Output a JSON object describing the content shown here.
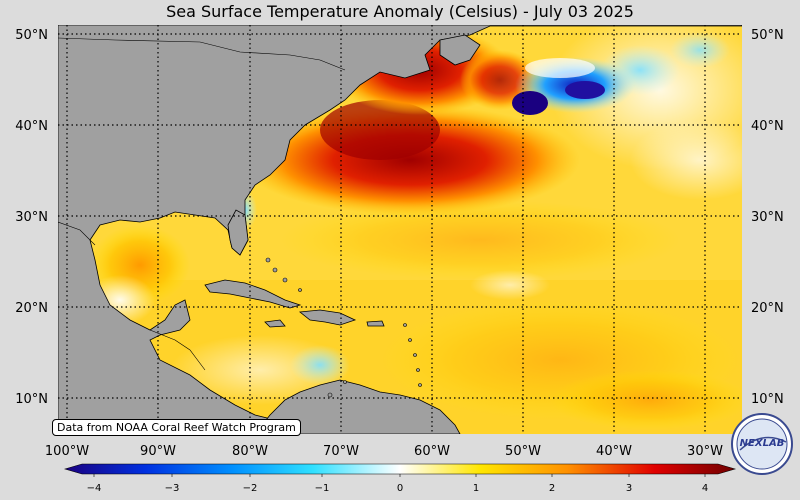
{
  "title": "Sea Surface Temperature Anomaly (Celsius) - July 03 2025",
  "credit": "Data from NOAA Coral Reef Watch Program",
  "logo_text": "NEXLAB",
  "lat_labels": [
    "50°N",
    "40°N",
    "30°N",
    "20°N",
    "10°N"
  ],
  "lon_labels": [
    "100°W",
    "90°W",
    "80°W",
    "70°W",
    "60°W",
    "50°W",
    "40°W",
    "30°W"
  ],
  "colorbar": {
    "ticks": [
      "−4",
      "−3",
      "−2",
      "−1",
      "0",
      "1",
      "2",
      "3",
      "4"
    ],
    "colors": [
      "#1a0080",
      "#0040ff",
      "#00c8ff",
      "#ffffff",
      "#ffe000",
      "#ff8c00",
      "#e00000",
      "#800000"
    ]
  }
}
